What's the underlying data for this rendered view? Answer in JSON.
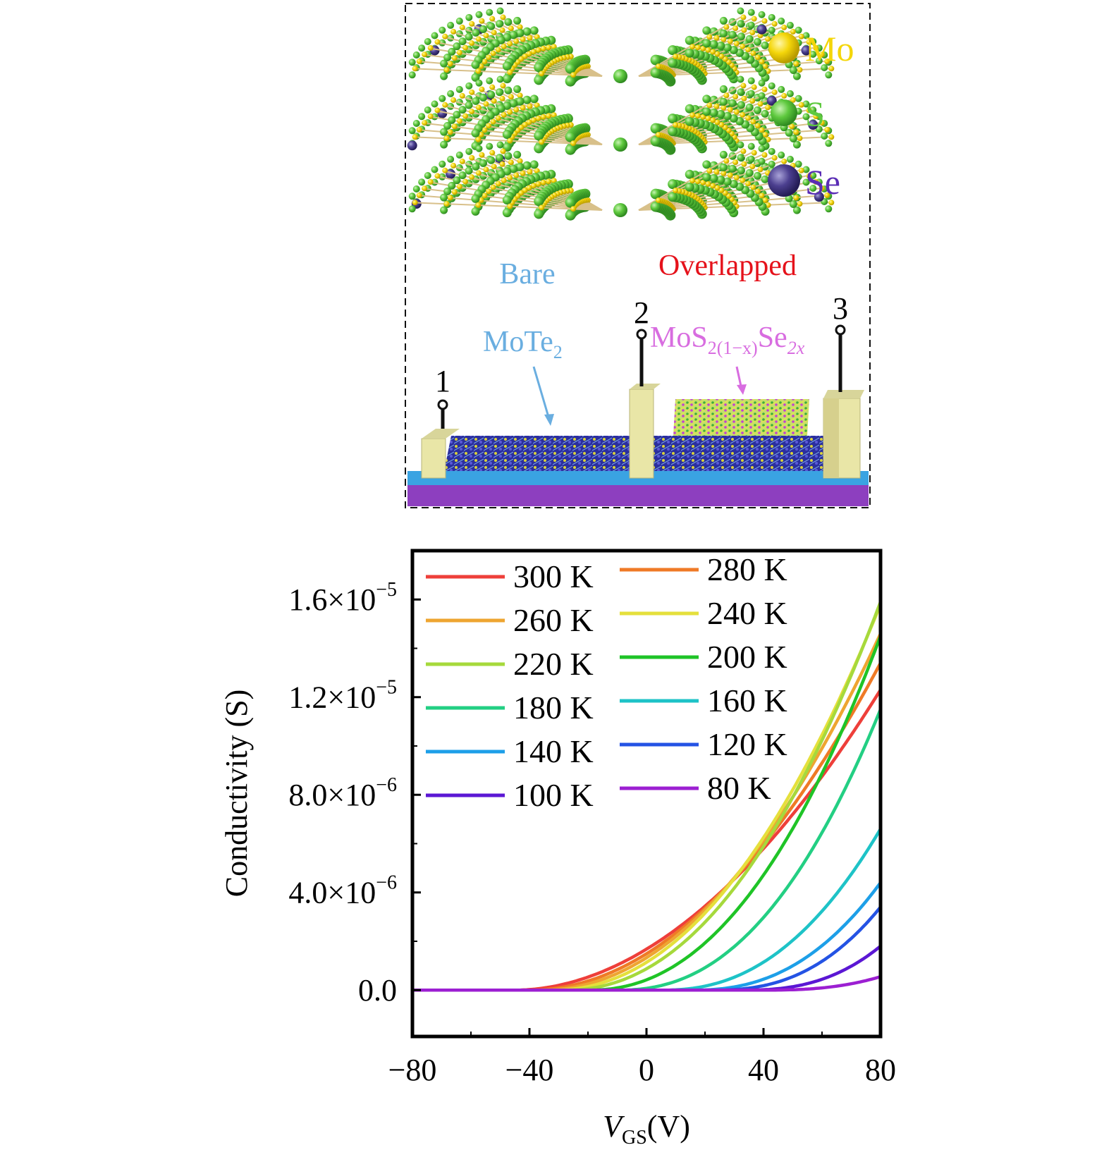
{
  "schematic": {
    "legend": [
      {
        "symbol": "Mo",
        "color": "#f4d60a"
      },
      {
        "symbol": "S",
        "color": "#5ec93e"
      },
      {
        "symbol": "Se",
        "color": "#4b3f8f"
      }
    ],
    "region_bare": "Bare",
    "region_overlapped": "Overlapped",
    "material_bottom": {
      "main": "MoTe",
      "sub": "2"
    },
    "material_top": {
      "main1": "MoS",
      "sub1": "2(1−x)",
      "main2": "Se",
      "sub2": "2x"
    },
    "electrodes": [
      "1",
      "2",
      "3"
    ],
    "colors": {
      "bare": "#6aaee0",
      "overlapped": "#e5121b",
      "material_top": "#d86de0",
      "substrate_top": "#3aa3e2",
      "substrate_bottom": "#8d3fbf",
      "electrode": "#e9e6a7"
    }
  },
  "chart_data": {
    "type": "line",
    "title": "",
    "xlabel": {
      "main": "V",
      "sub": "GS",
      "unit": "(V)"
    },
    "ylabel": "Conductivity (S)",
    "xlim": [
      -80,
      80
    ],
    "ylim": [
      -1.9e-06,
      1.8e-05
    ],
    "xticks": [
      {
        "v": -80,
        "label": "−80"
      },
      {
        "v": -40,
        "label": "−40"
      },
      {
        "v": 0,
        "label": "0"
      },
      {
        "v": 40,
        "label": "40"
      },
      {
        "v": 80,
        "label": "80"
      }
    ],
    "yticks": [
      {
        "v": 0,
        "mantissa": "0.0",
        "exp": ""
      },
      {
        "v": 4e-06,
        "mantissa": "4.0×10",
        "exp": "−6"
      },
      {
        "v": 8e-06,
        "mantissa": "8.0×10",
        "exp": "−6"
      },
      {
        "v": 1.2e-05,
        "mantissa": "1.2×10",
        "exp": "−5"
      },
      {
        "v": 1.6e-05,
        "mantissa": "1.6×10",
        "exp": "−5"
      }
    ],
    "legend_position": "top-left",
    "series": [
      {
        "name": "300 K",
        "color": "#ee3f3a",
        "onset": -45,
        "end": 1.23e-05,
        "power": 1.95
      },
      {
        "name": "280 K",
        "color": "#ef7a26",
        "onset": -40,
        "end": 1.34e-05,
        "power": 2.0
      },
      {
        "name": "260 K",
        "color": "#eea531",
        "onset": -36,
        "end": 1.46e-05,
        "power": 2.05
      },
      {
        "name": "240 K",
        "color": "#e5e03c",
        "onset": -32,
        "end": 1.58e-05,
        "power": 2.1
      },
      {
        "name": "220 K",
        "color": "#a6d93c",
        "onset": -28,
        "end": 1.59e-05,
        "power": 2.15
      },
      {
        "name": "200 K",
        "color": "#1fc427",
        "onset": -20,
        "end": 1.45e-05,
        "power": 2.2
      },
      {
        "name": "180 K",
        "color": "#23cf83",
        "onset": -10,
        "end": 1.15e-05,
        "power": 2.3
      },
      {
        "name": "160 K",
        "color": "#1ec3c7",
        "onset": 5,
        "end": 6.6e-06,
        "power": 2.3
      },
      {
        "name": "140 K",
        "color": "#1d9fe8",
        "onset": 15,
        "end": 4.4e-06,
        "power": 2.4
      },
      {
        "name": "120 K",
        "color": "#2453e4",
        "onset": 22,
        "end": 3.4e-06,
        "power": 2.5
      },
      {
        "name": "100 K",
        "color": "#5b17d4",
        "onset": 32,
        "end": 1.8e-06,
        "power": 2.6
      },
      {
        "name": "80 K",
        "color": "#9c1fd2",
        "onset": 40,
        "end": 5.5e-07,
        "power": 2.6
      }
    ]
  }
}
